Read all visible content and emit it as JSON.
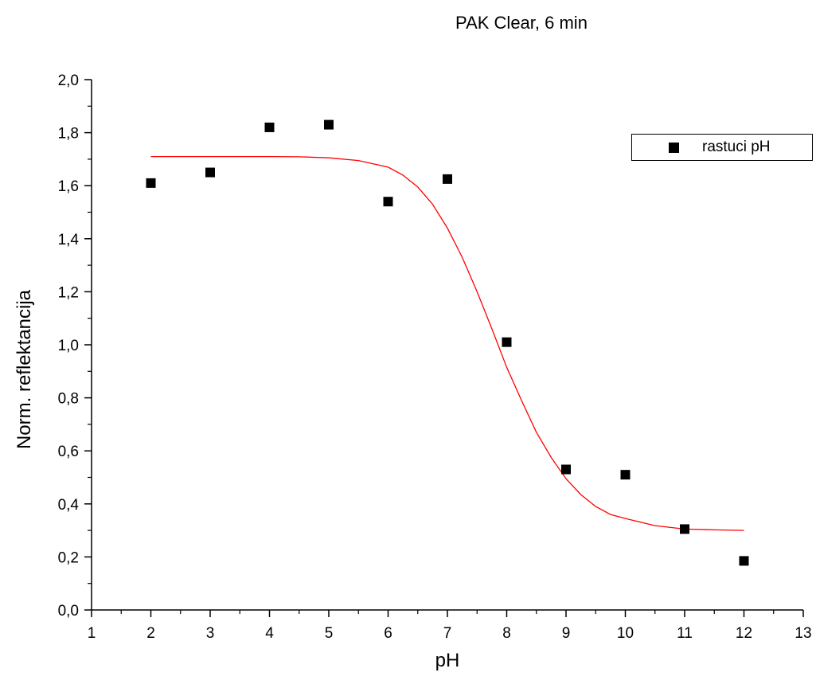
{
  "chart_data": {
    "type": "scatter",
    "title": "PAK Clear, 6 min",
    "xlabel": "pH",
    "ylabel": "Norm. reflektancija",
    "xlim": [
      1,
      13
    ],
    "ylim": [
      0.0,
      2.0
    ],
    "x_ticks": [
      "1",
      "2",
      "3",
      "4",
      "5",
      "6",
      "7",
      "8",
      "9",
      "10",
      "11",
      "12",
      "13"
    ],
    "y_ticks": [
      "0,0",
      "0,2",
      "0,4",
      "0,6",
      "0,8",
      "1,0",
      "1,2",
      "1,4",
      "1,6",
      "1,8",
      "2,0"
    ],
    "grid": false,
    "legend": {
      "position": "top-right",
      "entries": [
        {
          "label": "rastuci pH",
          "marker": "square",
          "color": "#000000"
        }
      ]
    },
    "series": [
      {
        "name": "rastuci pH",
        "kind": "scatter",
        "marker": "square",
        "color": "#000000",
        "x": [
          2,
          3,
          4,
          5,
          6,
          7,
          8,
          9,
          10,
          11,
          12
        ],
        "y": [
          1.61,
          1.65,
          1.82,
          1.83,
          1.54,
          1.625,
          1.01,
          0.53,
          0.51,
          0.305,
          0.185
        ]
      },
      {
        "kind": "line",
        "color": "#ff0000",
        "x": [
          2,
          2.5,
          3,
          3.5,
          4,
          4.5,
          5,
          5.5,
          6,
          6.25,
          6.5,
          6.75,
          7,
          7.25,
          7.5,
          7.75,
          8,
          8.25,
          8.5,
          8.75,
          9,
          9.25,
          9.5,
          9.75,
          10,
          10.5,
          11,
          11.5,
          12
        ],
        "y": [
          1.71,
          1.71,
          1.71,
          1.71,
          1.71,
          1.709,
          1.705,
          1.695,
          1.67,
          1.64,
          1.595,
          1.53,
          1.44,
          1.33,
          1.2,
          1.06,
          0.915,
          0.79,
          0.67,
          0.575,
          0.495,
          0.435,
          0.39,
          0.36,
          0.345,
          0.318,
          0.305,
          0.302,
          0.3
        ]
      }
    ]
  }
}
